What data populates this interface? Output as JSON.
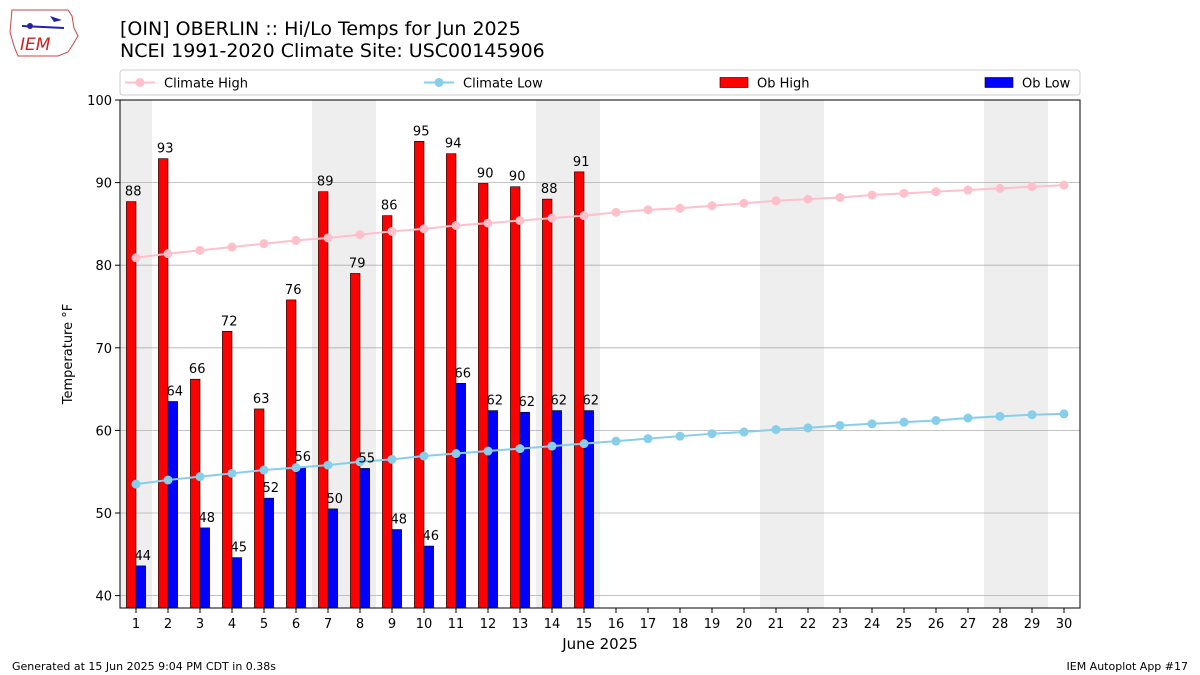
{
  "header": {
    "title_line1": "[OIN] OBERLIN :: Hi/Lo Temps for Jun 2025",
    "title_line2": "NCEI 1991-2020 Climate Site: USC00145906",
    "logo_text": "IEM"
  },
  "footer": {
    "generated": "Generated at 15 Jun 2025 9:04 PM CDT in 0.38s",
    "app": "IEM Autoplot App #17"
  },
  "chart_data": {
    "type": "bar",
    "xlabel": "June 2025",
    "ylabel": "Temperature °F",
    "ylim": [
      38.5,
      100
    ],
    "yticks": [
      40,
      50,
      60,
      70,
      80,
      90,
      100
    ],
    "days": [
      1,
      2,
      3,
      4,
      5,
      6,
      7,
      8,
      9,
      10,
      11,
      12,
      13,
      14,
      15,
      16,
      17,
      18,
      19,
      20,
      21,
      22,
      23,
      24,
      25,
      26,
      27,
      28,
      29,
      30
    ],
    "weekend_days": [
      1,
      7,
      8,
      14,
      15,
      21,
      22,
      28,
      29
    ],
    "legend": {
      "placement": "top",
      "climate_high": "Climate High",
      "climate_low": "Climate Low",
      "ob_high": "Ob High",
      "ob_low": "Ob Low"
    },
    "colors": {
      "climate_high": "#ffc0cb",
      "climate_low": "#87ceeb",
      "ob_high": "#ff0000",
      "ob_low": "#0000ff",
      "weekend": "#eeeeee",
      "grid": "#b0b0b0"
    },
    "ob_high": [
      87.7,
      92.9,
      66.2,
      72,
      62.6,
      75.8,
      88.9,
      79,
      86,
      95,
      93.5,
      89.9,
      89.5,
      88,
      91.3
    ],
    "ob_high_labels": [
      "88",
      "93",
      "66",
      "72",
      "63",
      "76",
      "89",
      "79",
      "86",
      "95",
      "94",
      "90",
      "90",
      "88",
      "91"
    ],
    "ob_low": [
      43.6,
      63.5,
      48.2,
      44.6,
      51.8,
      55.6,
      50.5,
      55.4,
      48,
      46,
      65.7,
      62.4,
      62.2,
      62.4,
      62.4
    ],
    "ob_low_labels": [
      "44",
      "64",
      "48",
      "45",
      "52",
      "56",
      "50",
      "55",
      "48",
      "46",
      "66",
      "62",
      "62",
      "62",
      "62"
    ],
    "climate_high": [
      80.9,
      81.4,
      81.8,
      82.2,
      82.6,
      83.0,
      83.3,
      83.7,
      84.1,
      84.4,
      84.8,
      85.1,
      85.4,
      85.7,
      86.0,
      86.4,
      86.7,
      86.9,
      87.2,
      87.5,
      87.8,
      88.0,
      88.2,
      88.5,
      88.7,
      88.9,
      89.1,
      89.3,
      89.5,
      89.7
    ],
    "climate_low": [
      53.5,
      54.0,
      54.4,
      54.8,
      55.2,
      55.5,
      55.8,
      56.2,
      56.5,
      56.9,
      57.2,
      57.5,
      57.8,
      58.1,
      58.4,
      58.7,
      59.0,
      59.3,
      59.6,
      59.8,
      60.1,
      60.3,
      60.6,
      60.8,
      61.0,
      61.2,
      61.5,
      61.7,
      61.9,
      62.0
    ]
  }
}
